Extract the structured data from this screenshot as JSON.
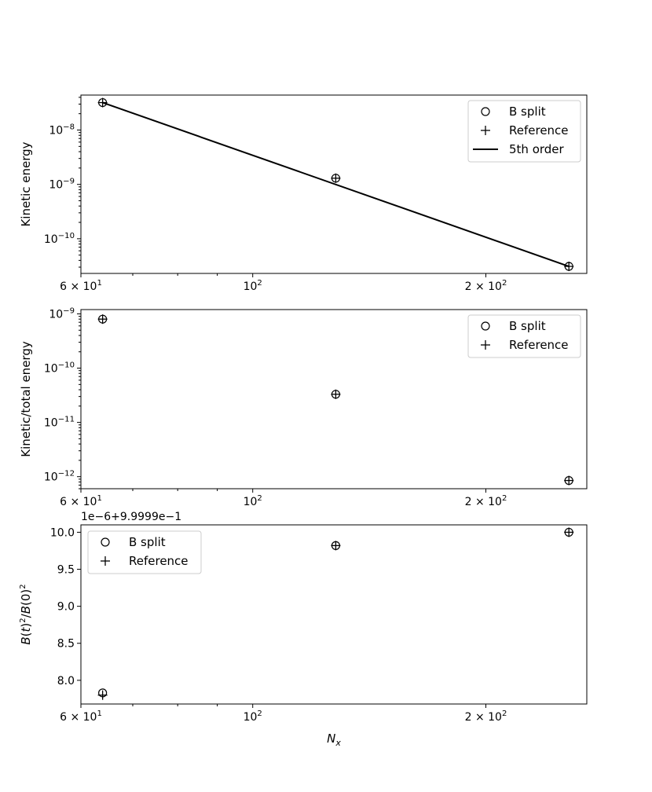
{
  "figure": {
    "xlabel_main": "N",
    "xlabel_sub": "x",
    "x_tick_labels": [
      {
        "x": 60,
        "base": "6 × 10",
        "exp": "1"
      },
      {
        "x": 100,
        "base": "10",
        "exp": "2"
      },
      {
        "x": 200,
        "base": "2 × 10",
        "exp": "2"
      }
    ]
  },
  "chart_data": [
    {
      "type": "scatter",
      "x_scale": "log",
      "y_scale": "log",
      "xlim": [
        60,
        270
      ],
      "ylim": [
        2.3e-11,
        4.4e-08
      ],
      "xlabel": "",
      "ylabel": "Kinetic energy",
      "y_ticks": [
        {
          "value": 1e-08,
          "base": "10",
          "exp": "−8"
        },
        {
          "value": 1e-09,
          "base": "10",
          "exp": "−9"
        },
        {
          "value": 1e-10,
          "base": "10",
          "exp": "−10"
        }
      ],
      "legend_position": "top-right",
      "series": [
        {
          "name": "B split",
          "marker": "circle",
          "x": [
            64,
            128,
            256
          ],
          "y": [
            3.2e-08,
            1.3e-09,
            3.1e-11
          ]
        },
        {
          "name": "Reference",
          "marker": "plus",
          "x": [
            64,
            128,
            256
          ],
          "y": [
            3.2e-08,
            1.3e-09,
            3.1e-11
          ]
        },
        {
          "name": "5th order",
          "marker": "line",
          "x": [
            64,
            256
          ],
          "y": [
            3.2e-08,
            3.1e-11
          ]
        }
      ]
    },
    {
      "type": "scatter",
      "x_scale": "log",
      "y_scale": "log",
      "xlim": [
        60,
        270
      ],
      "ylim": [
        6e-13,
        1.2e-09
      ],
      "xlabel": "",
      "ylabel": "Kinetic/total energy",
      "y_ticks": [
        {
          "value": 1e-09,
          "base": "10",
          "exp": "−9"
        },
        {
          "value": 1e-10,
          "base": "10",
          "exp": "−10"
        },
        {
          "value": 1e-11,
          "base": "10",
          "exp": "−11"
        },
        {
          "value": 1e-12,
          "base": "10",
          "exp": "−12"
        }
      ],
      "legend_position": "top-right",
      "series": [
        {
          "name": "B split",
          "marker": "circle",
          "x": [
            64,
            128,
            256
          ],
          "y": [
            8e-10,
            3.3e-11,
            8.5e-13
          ]
        },
        {
          "name": "Reference",
          "marker": "plus",
          "x": [
            64,
            128,
            256
          ],
          "y": [
            8e-10,
            3.3e-11,
            8.5e-13
          ]
        }
      ]
    },
    {
      "type": "scatter",
      "x_scale": "log",
      "y_scale": "linear",
      "xlim": [
        60,
        270
      ],
      "ylim": [
        7.68,
        10.1
      ],
      "xlabel": "N_x",
      "ylabel": "B(t)²/B(0)²",
      "offset_text": "1e−6+9.9999e−1",
      "y_ticks": [
        {
          "value": 8.0,
          "label": "8.0"
        },
        {
          "value": 8.5,
          "label": "8.5"
        },
        {
          "value": 9.0,
          "label": "9.0"
        },
        {
          "value": 9.5,
          "label": "9.5"
        },
        {
          "value": 10.0,
          "label": "10.0"
        }
      ],
      "legend_position": "top-left",
      "series": [
        {
          "name": "B split",
          "marker": "circle",
          "x": [
            64,
            128,
            256
          ],
          "y": [
            7.83,
            9.82,
            10.0
          ]
        },
        {
          "name": "Reference",
          "marker": "plus",
          "x": [
            64,
            128,
            256
          ],
          "y": [
            7.8,
            9.82,
            10.0
          ]
        }
      ]
    }
  ]
}
